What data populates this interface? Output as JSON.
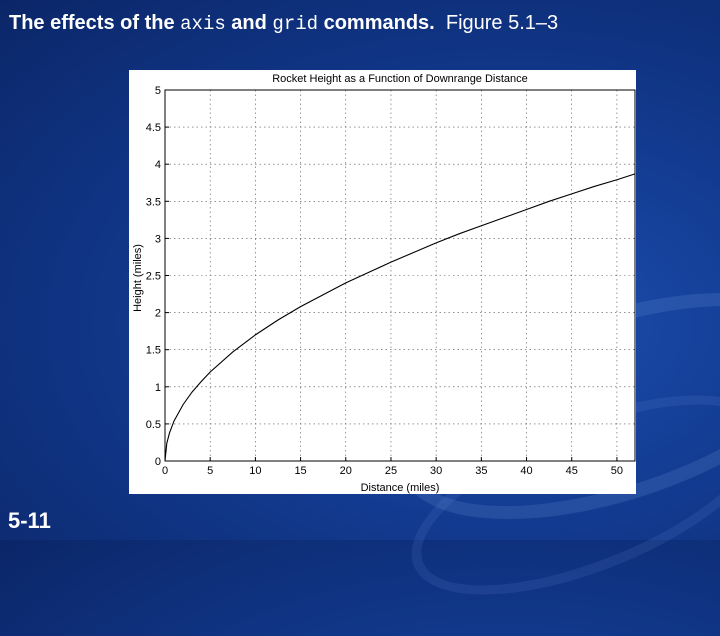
{
  "slide": {
    "title_parts": [
      {
        "text": "The effects of the ",
        "style": "b"
      },
      {
        "text": "axis",
        "style": "mono"
      },
      {
        "text": " and ",
        "style": "b"
      },
      {
        "text": "grid",
        "style": "mono"
      },
      {
        "text": " commands.",
        "style": "b"
      },
      {
        "text": "  Figure 5.1–3",
        "style": ""
      }
    ],
    "number": "5-11"
  },
  "colors": {
    "background": "#123a8f",
    "plot_background": "#ffffff",
    "line": "#000000",
    "grid": "#555555"
  },
  "chart_data": {
    "type": "line",
    "title": "Rocket Height as a Function of Downrange Distance",
    "xlabel": "Distance (miles)",
    "ylabel": "Height (miles)",
    "xlim": [
      0,
      52
    ],
    "ylim": [
      0,
      5
    ],
    "xticks": [
      0,
      5,
      10,
      15,
      20,
      25,
      30,
      35,
      40,
      45,
      50
    ],
    "yticks": [
      0,
      0.5,
      1,
      1.5,
      2,
      2.5,
      3,
      3.5,
      4,
      4.5,
      5
    ],
    "ytick_labels": [
      "0",
      "0.5",
      "1",
      "1.5",
      "2",
      "2.5",
      "3",
      "3.5",
      "4",
      "4.5",
      "5"
    ],
    "grid": true,
    "series": [
      {
        "x": [
          0,
          0.2,
          0.5,
          1,
          2,
          3,
          4,
          5,
          7.5,
          10,
          12.5,
          15,
          17.5,
          20,
          22.5,
          25,
          27.5,
          30,
          32.5,
          35,
          37.5,
          40,
          42.5,
          45,
          47.5,
          50,
          52
        ],
        "y": [
          0,
          0.24,
          0.38,
          0.54,
          0.76,
          0.93,
          1.07,
          1.2,
          1.47,
          1.7,
          1.9,
          2.08,
          2.24,
          2.4,
          2.54,
          2.68,
          2.81,
          2.94,
          3.06,
          3.17,
          3.28,
          3.39,
          3.5,
          3.6,
          3.7,
          3.79,
          3.87
        ]
      }
    ]
  }
}
